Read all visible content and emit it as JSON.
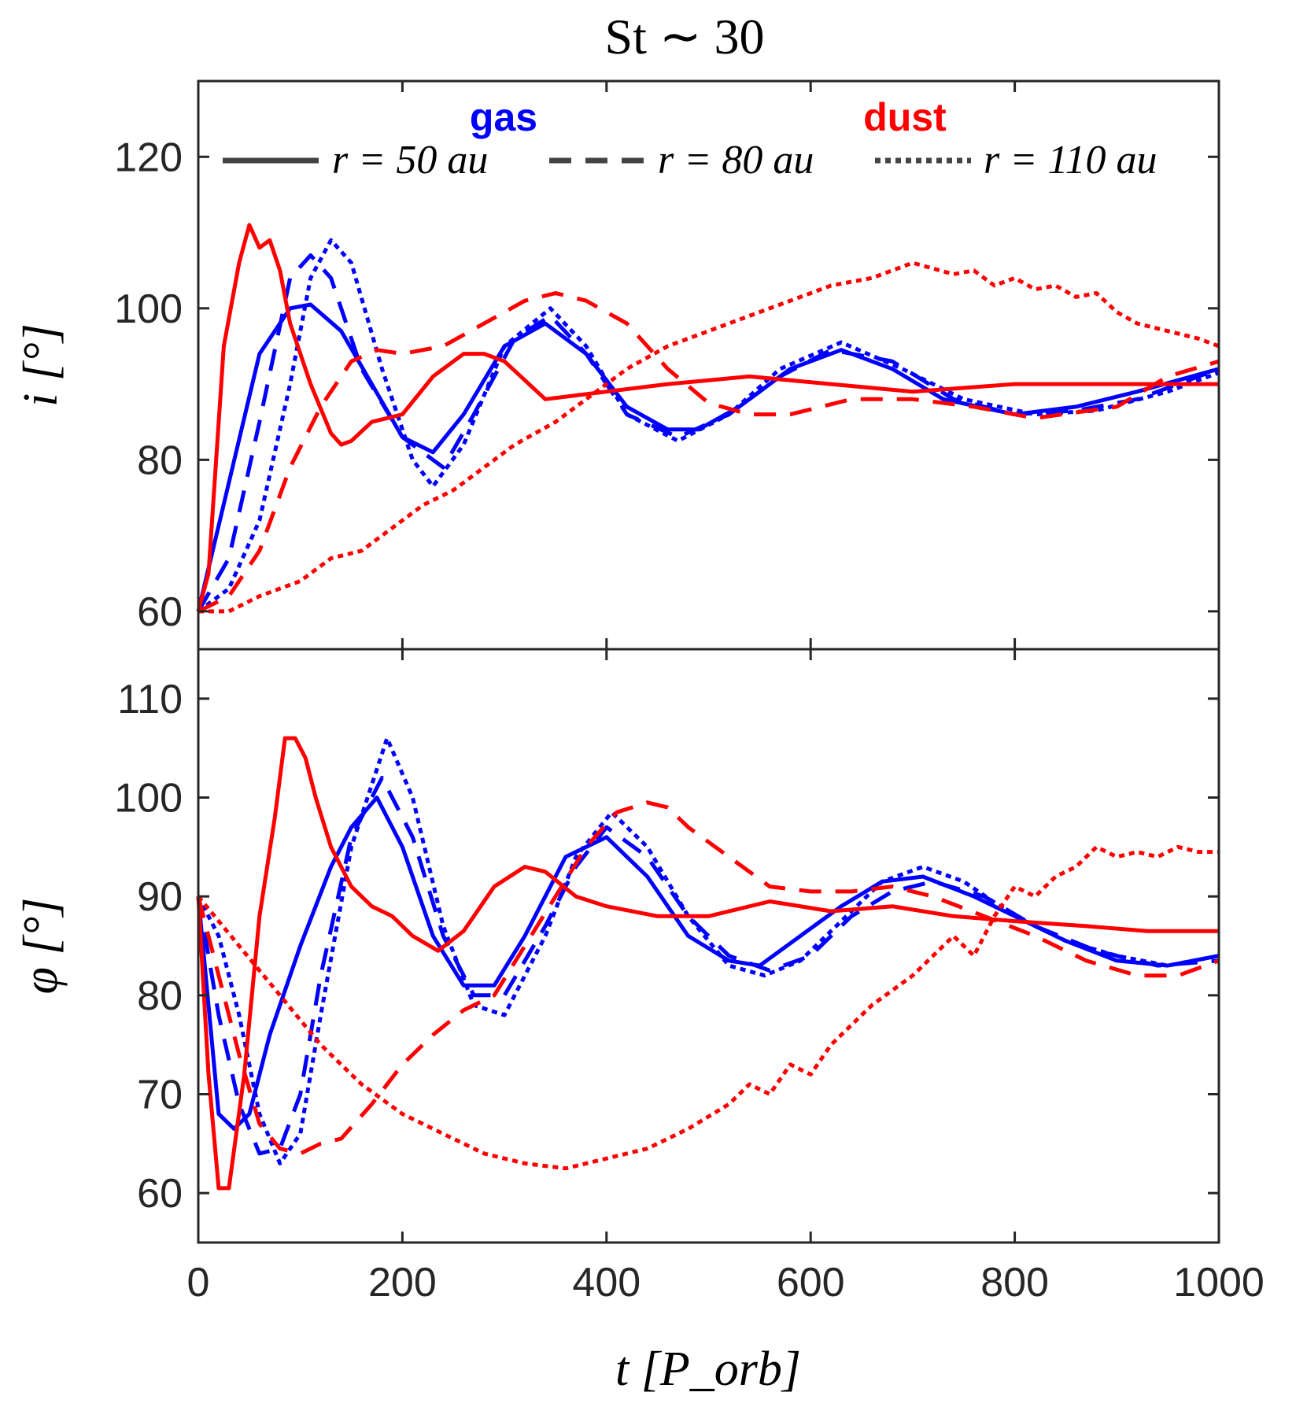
{
  "title": "St ∼ 30",
  "legend": {
    "gas_label": "gas",
    "dust_label": "dust",
    "entries": [
      {
        "style": "solid",
        "label": "r = 50 au"
      },
      {
        "style": "dashed",
        "label": "r = 80 au"
      },
      {
        "style": "dotted",
        "label": "r = 110 au"
      }
    ]
  },
  "colors": {
    "gas": "#0000ff",
    "dust": "#ff0000",
    "legend_line": "#444444",
    "axis": "#262626"
  },
  "chart_data": [
    {
      "type": "line",
      "panel": "top",
      "ylabel": "i [°]",
      "xlabel": "",
      "xlim": [
        0,
        1000
      ],
      "ylim": [
        55,
        130
      ],
      "xticks": [
        "0",
        "200",
        "400",
        "600",
        "800",
        "1000"
      ],
      "yticks": [
        "60",
        "80",
        "100",
        "120"
      ],
      "series": [
        {
          "medium": "gas",
          "style": "solid",
          "x": [
            0,
            30,
            60,
            90,
            110,
            140,
            170,
            200,
            230,
            260,
            300,
            340,
            380,
            420,
            460,
            490,
            530,
            580,
            630,
            680,
            730,
            800,
            860,
            920,
            1000
          ],
          "y": [
            60,
            77,
            94,
            100,
            100.5,
            97,
            90,
            83,
            81,
            86,
            95,
            98,
            94,
            87,
            84,
            84,
            87,
            92,
            94.5,
            92,
            88,
            86,
            87,
            89,
            92
          ]
        },
        {
          "medium": "gas",
          "style": "dashed",
          "x": [
            0,
            30,
            60,
            90,
            110,
            130,
            160,
            200,
            240,
            270,
            310,
            345,
            380,
            420,
            470,
            520,
            570,
            620,
            680,
            740,
            800,
            860,
            920,
            1000
          ],
          "y": [
            60,
            67,
            85,
            104,
            107,
            104,
            92,
            83,
            79,
            86,
            96,
            99,
            94,
            86,
            83,
            86,
            91,
            94.5,
            93,
            88,
            86,
            86.5,
            88,
            92
          ]
        },
        {
          "medium": "gas",
          "style": "dotted",
          "x": [
            0,
            30,
            60,
            90,
            110,
            130,
            150,
            180,
            210,
            230,
            260,
            300,
            345,
            380,
            420,
            470,
            520,
            570,
            630,
            690,
            750,
            820,
            880,
            950,
            1000
          ],
          "y": [
            60,
            63,
            72,
            90,
            104,
            109,
            106,
            92,
            80,
            76.5,
            82,
            95,
            100,
            95,
            86,
            82.5,
            86,
            92,
            95.5,
            92,
            88,
            86,
            86.5,
            89,
            91.5
          ]
        },
        {
          "medium": "dust",
          "style": "solid",
          "x": [
            0,
            10,
            25,
            40,
            50,
            60,
            70,
            80,
            90,
            110,
            130,
            140,
            150,
            170,
            200,
            230,
            260,
            280,
            300,
            340,
            400,
            460,
            540,
            620,
            700,
            800,
            900,
            1000
          ],
          "y": [
            60,
            65,
            95,
            106,
            111,
            108,
            109,
            105,
            98,
            90,
            83.5,
            82,
            82.5,
            85,
            86,
            91,
            94,
            94,
            93,
            88,
            89,
            90,
            91,
            90,
            89,
            90,
            90,
            90
          ]
        },
        {
          "medium": "dust",
          "style": "dashed",
          "x": [
            0,
            30,
            60,
            90,
            120,
            150,
            175,
            200,
            240,
            280,
            320,
            350,
            380,
            420,
            460,
            500,
            540,
            580,
            640,
            700,
            760,
            820,
            900,
            950,
            1000
          ],
          "y": [
            60,
            62,
            68,
            79,
            87,
            93,
            94.5,
            94,
            95,
            98,
            101,
            102,
            101,
            98,
            92,
            87.5,
            86,
            86,
            88,
            88,
            87,
            85.5,
            87,
            91,
            93
          ]
        },
        {
          "medium": "dust",
          "style": "dotted",
          "x": [
            0,
            30,
            60,
            100,
            130,
            160,
            200,
            220,
            250,
            280,
            310,
            350,
            380,
            420,
            460,
            500,
            540,
            580,
            620,
            660,
            700,
            740,
            760,
            780,
            800,
            820,
            840,
            860,
            880,
            900,
            920,
            950,
            980,
            1000
          ],
          "y": [
            60,
            60,
            62,
            64,
            67,
            68,
            72,
            74,
            76,
            79,
            82,
            85,
            88,
            92,
            95,
            97,
            99,
            101,
            103,
            104,
            106,
            104.5,
            105,
            103,
            104,
            102.5,
            103,
            101.5,
            102,
            99.5,
            98,
            97,
            96,
            95
          ]
        }
      ]
    },
    {
      "type": "line",
      "panel": "bottom",
      "ylabel": "φ [°]",
      "xlabel": "t [P_orb]",
      "xlim": [
        0,
        1000
      ],
      "ylim": [
        55,
        115
      ],
      "xticks": [
        "0",
        "200",
        "400",
        "600",
        "800",
        "1000"
      ],
      "yticks": [
        "60",
        "70",
        "80",
        "90",
        "100",
        "110"
      ],
      "series": [
        {
          "medium": "gas",
          "style": "solid",
          "x": [
            0,
            20,
            35,
            50,
            70,
            100,
            130,
            150,
            175,
            200,
            230,
            260,
            290,
            320,
            360,
            400,
            440,
            480,
            520,
            550,
            590,
            630,
            670,
            710,
            760,
            800,
            850,
            900,
            950,
            1000
          ],
          "y": [
            90,
            68,
            66.5,
            68,
            76,
            85,
            93,
            97,
            100,
            95,
            86,
            81,
            81,
            86,
            94,
            96,
            92,
            86,
            83.5,
            83,
            86,
            89,
            91.5,
            92,
            90,
            88,
            85.5,
            83.5,
            83,
            84
          ]
        },
        {
          "medium": "gas",
          "style": "dashed",
          "x": [
            0,
            20,
            40,
            60,
            80,
            100,
            120,
            150,
            180,
            210,
            240,
            270,
            300,
            340,
            370,
            400,
            440,
            480,
            520,
            560,
            600,
            640,
            680,
            720,
            770,
            820,
            880,
            940,
            1000
          ],
          "y": [
            90,
            78,
            69,
            64,
            64.5,
            70,
            82,
            96,
            102,
            96,
            86,
            80,
            80,
            87,
            93,
            97,
            94,
            88,
            84,
            82.5,
            84,
            88,
            90.5,
            91.5,
            90,
            87,
            84.5,
            83,
            83.5
          ]
        },
        {
          "medium": "gas",
          "style": "dotted",
          "x": [
            0,
            20,
            40,
            60,
            80,
            100,
            120,
            150,
            185,
            210,
            240,
            270,
            300,
            340,
            370,
            405,
            440,
            480,
            520,
            555,
            590,
            630,
            670,
            710,
            750,
            800,
            850,
            900,
            950,
            1000
          ],
          "y": [
            90,
            86,
            78,
            68,
            63,
            66,
            78,
            95,
            106,
            100,
            87,
            79,
            78,
            86,
            94,
            98.5,
            95,
            88,
            83,
            82,
            83.5,
            87.5,
            91.5,
            93,
            91.5,
            88,
            85.5,
            84,
            83,
            84
          ]
        },
        {
          "medium": "dust",
          "style": "solid",
          "x": [
            0,
            10,
            20,
            30,
            45,
            60,
            75,
            85,
            95,
            105,
            115,
            130,
            150,
            170,
            190,
            210,
            235,
            260,
            290,
            320,
            340,
            370,
            400,
            450,
            500,
            560,
            620,
            680,
            740,
            800,
            870,
            930,
            1000
          ],
          "y": [
            90,
            72,
            60.5,
            60.5,
            72,
            88,
            98,
            106,
            106,
            104,
            100,
            95,
            91,
            89,
            88,
            86,
            84.5,
            86.5,
            91,
            93,
            92.5,
            90,
            89,
            88,
            88,
            89.5,
            88.5,
            89,
            88,
            87.5,
            87,
            86.5,
            86.5
          ]
        },
        {
          "medium": "dust",
          "style": "dashed",
          "x": [
            0,
            20,
            40,
            60,
            80,
            100,
            120,
            140,
            170,
            200,
            230,
            260,
            290,
            320,
            350,
            380,
            410,
            440,
            460,
            480,
            520,
            560,
            600,
            640,
            680,
            720,
            770,
            820,
            870,
            920,
            960,
            1000
          ],
          "y": [
            90,
            82,
            74,
            67,
            64.5,
            64,
            65,
            65.5,
            69,
            73,
            76,
            78.5,
            80,
            85,
            90,
            95,
            98.5,
            99.5,
            99,
            97,
            94,
            91,
            90.5,
            90.5,
            91,
            90,
            88,
            86,
            83.5,
            82,
            82,
            83.5
          ]
        },
        {
          "medium": "dust",
          "style": "dotted",
          "x": [
            0,
            40,
            80,
            120,
            160,
            200,
            240,
            280,
            320,
            360,
            400,
            440,
            480,
            520,
            540,
            560,
            580,
            600,
            620,
            660,
            700,
            740,
            760,
            780,
            800,
            820,
            840,
            860,
            880,
            900,
            920,
            940,
            960,
            980,
            1000
          ],
          "y": [
            90,
            85,
            80,
            75,
            71,
            68,
            66,
            64,
            63,
            62.5,
            63.5,
            64.5,
            66.5,
            69,
            71,
            70,
            73,
            72,
            75,
            79,
            82,
            86,
            84,
            88,
            91,
            90,
            92,
            93,
            95,
            94,
            94.5,
            94,
            95,
            94.5,
            94.5
          ]
        }
      ]
    }
  ]
}
